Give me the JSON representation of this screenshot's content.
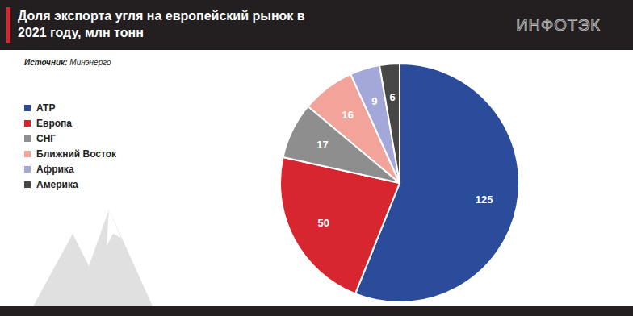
{
  "chart_data": {
    "type": "pie",
    "title": "Доля экспорта угля на европейский рынок в 2021 году, млн тонн",
    "source_label": "Источник:",
    "source": "Минэнерго",
    "logo": "ИНФОТЭК",
    "categories": [
      "АТР",
      "Европа",
      "СНГ",
      "Ближний Восток",
      "Африка",
      "Америка"
    ],
    "values": [
      125,
      50,
      17,
      16,
      9,
      6
    ],
    "colors": [
      "#2b4c9b",
      "#d7262f",
      "#8e8e8e",
      "#f2a49b",
      "#a3a8d8",
      "#474747"
    ],
    "data_labels": true,
    "legend": "left"
  }
}
